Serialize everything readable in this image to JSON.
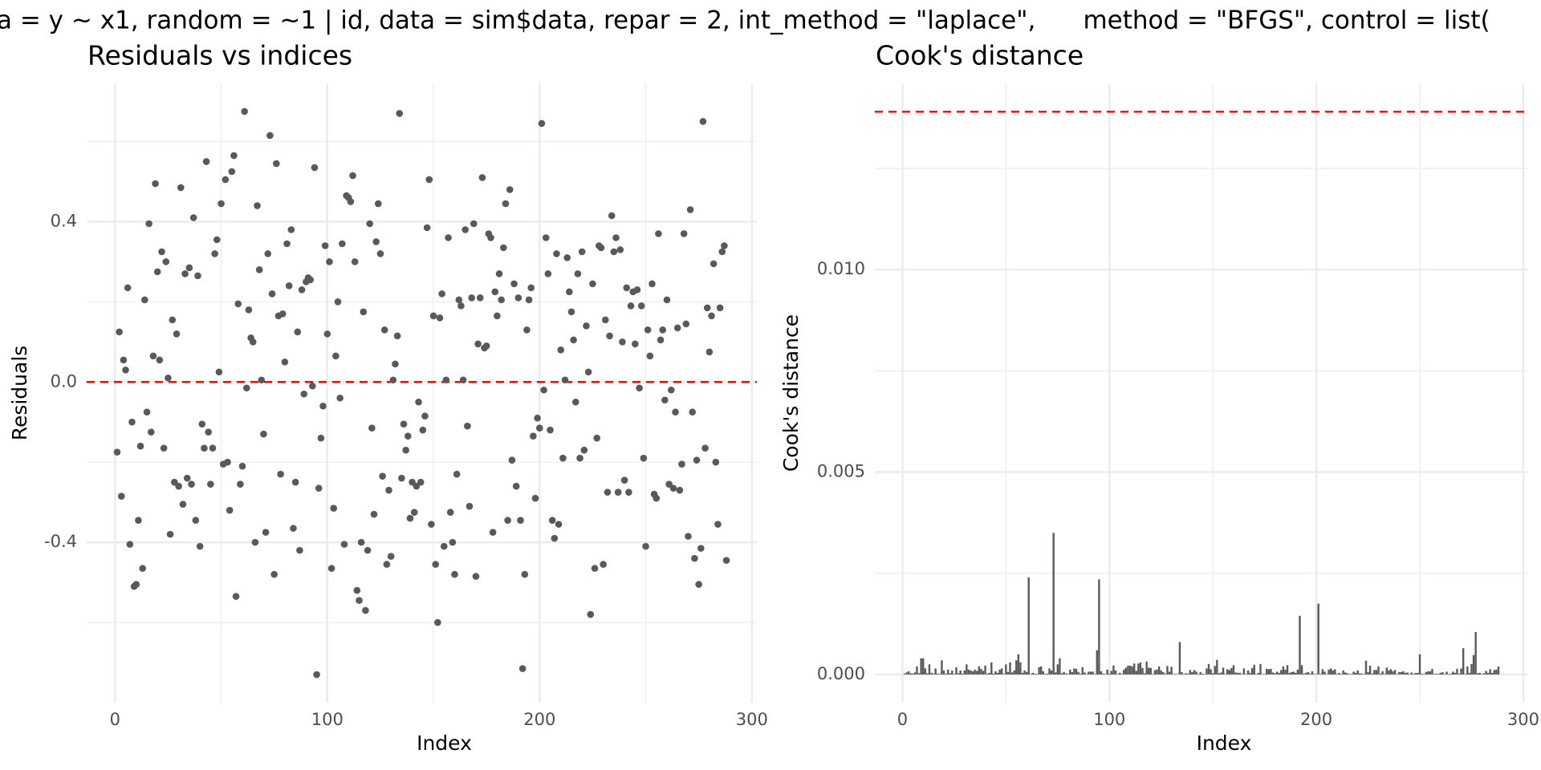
{
  "title": "a = y ~ x1, random = ~1 | id, data = sim$data, repar = 2, int_method = \"laplace\",      method = \"BFGS\", control = list(",
  "chart_data": [
    {
      "type": "scatter",
      "title": "Residuals vs indices",
      "xlabel": "Index",
      "ylabel": "Residuals",
      "color": "#595959",
      "xlim": [
        -13.35,
        302.35
      ],
      "xticks": [
        0,
        100,
        200,
        300
      ],
      "xminor": [
        50,
        150,
        250
      ],
      "ylim": [
        -0.8,
        0.745
      ],
      "yticks": [
        -0.4,
        {
          "value": 0,
          "label": "0.0"
        },
        0.4
      ],
      "yminor": [
        -0.6,
        -0.2,
        0.2,
        0.6
      ],
      "grid": true,
      "hline": 0,
      "hline_color": "#ff0000",
      "x": [
        1,
        2,
        3,
        4,
        5,
        6,
        7,
        8,
        9,
        10,
        11,
        12,
        13,
        14,
        15,
        16,
        17,
        18,
        19,
        20,
        21,
        22,
        23,
        24,
        25,
        26,
        27,
        28,
        29,
        30,
        31,
        32,
        33,
        34,
        35,
        36,
        37,
        38,
        39,
        40,
        41,
        42,
        43,
        44,
        45,
        46,
        47,
        48,
        49,
        50,
        51,
        52,
        53,
        54,
        55,
        56,
        57,
        58,
        59,
        60,
        61,
        62,
        63,
        64,
        65,
        66,
        67,
        68,
        69,
        70,
        71,
        72,
        73,
        74,
        75,
        76,
        77,
        78,
        79,
        80,
        81,
        82,
        83,
        84,
        85,
        86,
        87,
        88,
        89,
        90,
        91,
        92,
        93,
        94,
        95,
        96,
        97,
        98,
        99,
        100,
        101,
        102,
        103,
        104,
        105,
        106,
        107,
        108,
        109,
        110,
        111,
        112,
        113,
        114,
        115,
        116,
        117,
        118,
        119,
        120,
        121,
        122,
        123,
        124,
        125,
        126,
        127,
        128,
        129,
        130,
        131,
        132,
        133,
        134,
        135,
        136,
        137,
        138,
        139,
        140,
        141,
        142,
        143,
        144,
        145,
        146,
        147,
        148,
        149,
        150,
        151,
        152,
        153,
        154,
        155,
        156,
        157,
        158,
        159,
        160,
        161,
        162,
        163,
        164,
        165,
        166,
        167,
        168,
        169,
        170,
        171,
        172,
        173,
        174,
        175,
        176,
        177,
        178,
        179,
        180,
        181,
        182,
        183,
        184,
        185,
        186,
        187,
        188,
        189,
        190,
        191,
        192,
        193,
        194,
        195,
        196,
        197,
        198,
        199,
        200,
        201,
        202,
        203,
        204,
        205,
        206,
        207,
        208,
        209,
        210,
        211,
        212,
        213,
        214,
        215,
        216,
        217,
        218,
        219,
        220,
        221,
        222,
        223,
        224,
        225,
        226,
        227,
        228,
        229,
        230,
        231,
        232,
        233,
        234,
        235,
        236,
        237,
        238,
        239,
        240,
        241,
        242,
        243,
        244,
        245,
        246,
        247,
        248,
        249,
        250,
        251,
        252,
        253,
        254,
        255,
        256,
        257,
        258,
        259,
        260,
        261,
        262,
        263,
        264,
        265,
        266,
        267,
        268,
        269,
        270,
        271,
        272,
        273,
        274,
        275,
        276,
        277,
        278,
        279,
        280,
        281,
        282,
        283,
        284,
        285,
        286,
        287,
        288
      ],
      "values": [
        -0.175,
        0.125,
        -0.285,
        0.055,
        0.03,
        0.235,
        -0.405,
        -0.1,
        -0.51,
        -0.505,
        -0.345,
        -0.16,
        -0.465,
        0.205,
        -0.075,
        0.395,
        -0.125,
        0.065,
        0.495,
        0.275,
        0.055,
        0.325,
        -0.165,
        0.3,
        0.01,
        -0.38,
        0.155,
        -0.25,
        0.12,
        -0.26,
        0.485,
        -0.305,
        0.27,
        -0.24,
        0.285,
        -0.255,
        0.41,
        -0.345,
        0.265,
        -0.41,
        -0.105,
        -0.165,
        0.55,
        -0.125,
        -0.255,
        -0.165,
        0.32,
        0.355,
        0.025,
        0.445,
        -0.205,
        0.505,
        -0.2,
        -0.32,
        0.525,
        0.565,
        -0.535,
        0.195,
        -0.255,
        -0.21,
        0.675,
        -0.015,
        0.18,
        0.11,
        0.1,
        -0.4,
        0.44,
        0.28,
        0.005,
        -0.13,
        -0.375,
        0.32,
        0.615,
        0.22,
        -0.48,
        0.545,
        0.165,
        -0.23,
        0.17,
        0.05,
        0.345,
        0.24,
        0.38,
        -0.365,
        -0.25,
        0.125,
        -0.42,
        0.23,
        -0.03,
        0.25,
        0.26,
        0.255,
        -0.01,
        0.535,
        -0.73,
        -0.265,
        -0.14,
        -0.06,
        0.34,
        0.12,
        0.3,
        -0.465,
        -0.315,
        0.065,
        0.2,
        -0.04,
        0.345,
        -0.405,
        0.465,
        0.46,
        0.45,
        0.515,
        0.3,
        -0.52,
        -0.545,
        -0.4,
        0.175,
        -0.57,
        -0.42,
        0.395,
        -0.115,
        -0.33,
        0.35,
        0.445,
        0.32,
        -0.235,
        0.13,
        -0.455,
        -0.27,
        -0.435,
        0.005,
        0.045,
        0.115,
        0.67,
        -0.24,
        -0.105,
        -0.17,
        -0.135,
        -0.34,
        -0.25,
        -0.325,
        -0.26,
        -0.05,
        -0.25,
        -0.12,
        -0.085,
        0.385,
        0.505,
        -0.355,
        0.165,
        -0.455,
        -0.6,
        0.16,
        0.22,
        -0.41,
        0.005,
        0.36,
        -0.325,
        -0.4,
        -0.48,
        -0.23,
        0.205,
        0.19,
        0.005,
        0.38,
        -0.11,
        -0.31,
        0.21,
        0.395,
        -0.485,
        0.095,
        0.21,
        0.51,
        0.085,
        0.09,
        0.37,
        0.36,
        -0.375,
        0.225,
        0.165,
        0.27,
        0.205,
        0.335,
        0.445,
        -0.345,
        0.48,
        -0.195,
        0.245,
        -0.26,
        0.21,
        -0.345,
        -0.715,
        -0.48,
        0.13,
        0.205,
        0.235,
        -0.135,
        -0.29,
        -0.09,
        -0.115,
        0.645,
        -0.02,
        0.36,
        0.27,
        -0.12,
        -0.345,
        -0.39,
        0.32,
        -0.355,
        0.08,
        -0.19,
        0.005,
        0.31,
        0.225,
        0.175,
        0.105,
        -0.05,
        0.27,
        -0.19,
        0.325,
        -0.17,
        0.14,
        0.025,
        -0.58,
        0.245,
        -0.465,
        -0.14,
        0.34,
        0.335,
        -0.455,
        0.155,
        -0.275,
        0.115,
        0.415,
        0.325,
        0.36,
        -0.275,
        0.33,
        0.1,
        -0.245,
        0.235,
        -0.275,
        0.19,
        0.225,
        0.095,
        0.23,
        -0.015,
        0.19,
        -0.19,
        -0.41,
        0.13,
        0.065,
        0.245,
        -0.28,
        -0.29,
        0.37,
        0.105,
        0.13,
        -0.045,
        0.205,
        -0.255,
        -0.02,
        -0.265,
        -0.075,
        0.135,
        -0.27,
        -0.205,
        0.37,
        0.145,
        -0.385,
        0.43,
        -0.075,
        -0.44,
        -0.195,
        -0.505,
        -0.415,
        0.65,
        -0.165,
        0.185,
        0.075,
        0.165,
        0.295,
        -0.2,
        -0.355,
        0.185,
        0.325,
        0.34,
        -0.445
      ]
    },
    {
      "type": "bar",
      "title": "Cook's distance",
      "xlabel": "Index",
      "ylabel": "Cook's distance",
      "color": "#595959",
      "xlim": [
        -13.35,
        302.35
      ],
      "xticks": [
        0,
        100,
        200,
        300
      ],
      "xminor": [
        50,
        150,
        250
      ],
      "ylim": [
        -0.000695,
        0.0146
      ],
      "yticks": [
        {
          "value": 0,
          "label": "0.000"
        },
        {
          "value": 0.005,
          "label": "0.005"
        },
        {
          "value": 0.01,
          "label": "0.010"
        }
      ],
      "yminor": [
        0.0025,
        0.0075,
        0.0125
      ],
      "grid": true,
      "hline": 0.0139,
      "hline_color": "#ff0000",
      "x": [
        1,
        2,
        3,
        4,
        5,
        6,
        7,
        8,
        9,
        10,
        11,
        12,
        13,
        14,
        15,
        16,
        17,
        18,
        19,
        20,
        21,
        22,
        23,
        24,
        25,
        26,
        27,
        28,
        29,
        30,
        31,
        32,
        33,
        34,
        35,
        36,
        37,
        38,
        39,
        40,
        41,
        42,
        43,
        44,
        45,
        46,
        47,
        48,
        49,
        50,
        51,
        52,
        53,
        54,
        55,
        56,
        57,
        58,
        59,
        60,
        61,
        62,
        63,
        64,
        65,
        66,
        67,
        68,
        69,
        70,
        71,
        72,
        73,
        74,
        75,
        76,
        77,
        78,
        79,
        80,
        81,
        82,
        83,
        84,
        85,
        86,
        87,
        88,
        89,
        90,
        91,
        92,
        93,
        94,
        95,
        96,
        97,
        98,
        99,
        100,
        101,
        102,
        103,
        104,
        105,
        106,
        107,
        108,
        109,
        110,
        111,
        112,
        113,
        114,
        115,
        116,
        117,
        118,
        119,
        120,
        121,
        122,
        123,
        124,
        125,
        126,
        127,
        128,
        129,
        130,
        131,
        132,
        133,
        134,
        135,
        136,
        137,
        138,
        139,
        140,
        141,
        142,
        143,
        144,
        145,
        146,
        147,
        148,
        149,
        150,
        151,
        152,
        153,
        154,
        155,
        156,
        157,
        158,
        159,
        160,
        161,
        162,
        163,
        164,
        165,
        166,
        167,
        168,
        169,
        170,
        171,
        172,
        173,
        174,
        175,
        176,
        177,
        178,
        179,
        180,
        181,
        182,
        183,
        184,
        185,
        186,
        187,
        188,
        189,
        190,
        191,
        192,
        193,
        194,
        195,
        196,
        197,
        198,
        199,
        200,
        201,
        202,
        203,
        204,
        205,
        206,
        207,
        208,
        209,
        210,
        211,
        212,
        213,
        214,
        215,
        216,
        217,
        218,
        219,
        220,
        221,
        222,
        223,
        224,
        225,
        226,
        227,
        228,
        229,
        230,
        231,
        232,
        233,
        234,
        235,
        236,
        237,
        238,
        239,
        240,
        241,
        242,
        243,
        244,
        245,
        246,
        247,
        248,
        249,
        250,
        251,
        252,
        253,
        254,
        255,
        256,
        257,
        258,
        259,
        260,
        261,
        262,
        263,
        264,
        265,
        266,
        267,
        268,
        269,
        270,
        271,
        272,
        273,
        274,
        275,
        276,
        277,
        278,
        279,
        280,
        281,
        282,
        283,
        284,
        285,
        286,
        287,
        288
      ],
      "values": [
        2e-05,
        5e-05,
        8e-05,
        3e-05,
        2e-05,
        5e-05,
        0.0002,
        3e-05,
        0.0004,
        0.0004,
        0.00015,
        3e-05,
        0.00025,
        4e-05,
        2e-05,
        0.00015,
        2e-05,
        1e-05,
        0.00035,
        0.0001,
        2e-05,
        0.00012,
        3e-05,
        0.0001,
        1e-05,
        0.00018,
        3e-05,
        0.0001,
        2e-05,
        0.0001,
        0.00025,
        0.00012,
        0.0001,
        8e-05,
        0.00012,
        9e-05,
        0.0002,
        0.00014,
        9e-05,
        0.00022,
        2e-05,
        4e-05,
        0.0003,
        2e-05,
        8e-05,
        4e-05,
        0.00012,
        0.00015,
        1e-05,
        0.00025,
        6e-05,
        0.0003,
        5e-05,
        0.0001,
        0.00035,
        0.0005,
        0.0003,
        4e-05,
        0.0001,
        6e-05,
        0.0024,
        1e-05,
        4e-05,
        2e-05,
        1e-05,
        0.00018,
        0.0002,
        8e-05,
        1e-05,
        2e-05,
        0.00015,
        0.0001,
        0.0035,
        5e-05,
        0.00025,
        0.0004,
        3e-05,
        6e-05,
        3e-05,
        1e-05,
        0.00012,
        6e-05,
        0.00015,
        0.00014,
        6e-05,
        2e-05,
        0.00018,
        5e-05,
        1e-05,
        7e-05,
        7e-05,
        7e-05,
        1e-05,
        0.0006,
        0.00235,
        8e-05,
        2e-05,
        1e-05,
        0.00012,
        2e-05,
        9e-05,
        0.00022,
        0.0001,
        1e-05,
        4e-05,
        1e-05,
        0.00012,
        0.00017,
        0.00022,
        0.00022,
        0.0002,
        0.00027,
        9e-05,
        0.00027,
        0.0003,
        0.00016,
        3e-05,
        0.00032,
        0.00017,
        0.00016,
        1e-05,
        0.00011,
        0.00012,
        0.0002,
        0.0001,
        6e-05,
        2e-05,
        0.00021,
        7e-05,
        0.00019,
        1e-05,
        1e-05,
        1e-05,
        0.0008,
        6e-05,
        1e-05,
        3e-05,
        2e-05,
        0.00011,
        6e-05,
        0.00011,
        7e-05,
        1e-05,
        6e-05,
        2e-05,
        1e-05,
        0.00015,
        0.00026,
        0.00013,
        3e-05,
        0.00021,
        0.00036,
        3e-05,
        5e-05,
        0.00017,
        1e-05,
        0.00013,
        0.00011,
        0.00016,
        0.00023,
        5e-05,
        4e-05,
        4e-05,
        1e-05,
        0.00015,
        1e-05,
        0.0001,
        4e-05,
        0.00016,
        0.00024,
        1e-05,
        4e-05,
        0.00026,
        1e-05,
        1e-05,
        0.00014,
        0.00013,
        0.00014,
        5e-05,
        3e-05,
        7e-05,
        4e-05,
        0.00011,
        0.0002,
        0.00012,
        0.00023,
        4e-05,
        6e-05,
        7e-05,
        4e-05,
        0.00012,
        0.00145,
        0.00023,
        2e-05,
        4e-05,
        6e-05,
        2e-05,
        8e-05,
        1e-05,
        1e-05,
        0.00175,
        1e-05,
        0.00013,
        7e-05,
        1e-05,
        0.00012,
        0.00015,
        0.0001,
        0.00013,
        1e-05,
        4e-05,
        1e-05,
        0.0001,
        5e-05,
        3e-05,
        1e-05,
        1e-05,
        7e-05,
        4e-05,
        0.0001,
        3e-05,
        2e-05,
        1e-05,
        0.00034,
        6e-05,
        0.00022,
        2e-05,
        0.00011,
        0.00011,
        0.0002,
        2e-05,
        8e-05,
        1e-05,
        0.00017,
        0.0001,
        0.00013,
        8e-05,
        0.00011,
        1e-05,
        6e-05,
        6e-05,
        8e-05,
        4e-05,
        5e-05,
        1e-05,
        5e-05,
        1e-05,
        4e-05,
        4e-05,
        0.0005,
        2e-05,
        1e-05,
        6e-05,
        8e-05,
        8e-05,
        0.00014,
        1e-05,
        2e-05,
        1e-05,
        4e-05,
        6e-05,
        1e-05,
        7e-05,
        1e-05,
        2e-05,
        7e-05,
        4e-05,
        0.00014,
        2e-05,
        0.00015,
        0.00065,
        1e-05,
        0.0002,
        4e-05,
        0.00026,
        0.00048,
        0.00105,
        3e-05,
        4e-05,
        1e-05,
        3e-05,
        9e-05,
        4e-05,
        0.00013,
        4e-05,
        0.00011,
        0.00012,
        0.0002
      ]
    }
  ]
}
